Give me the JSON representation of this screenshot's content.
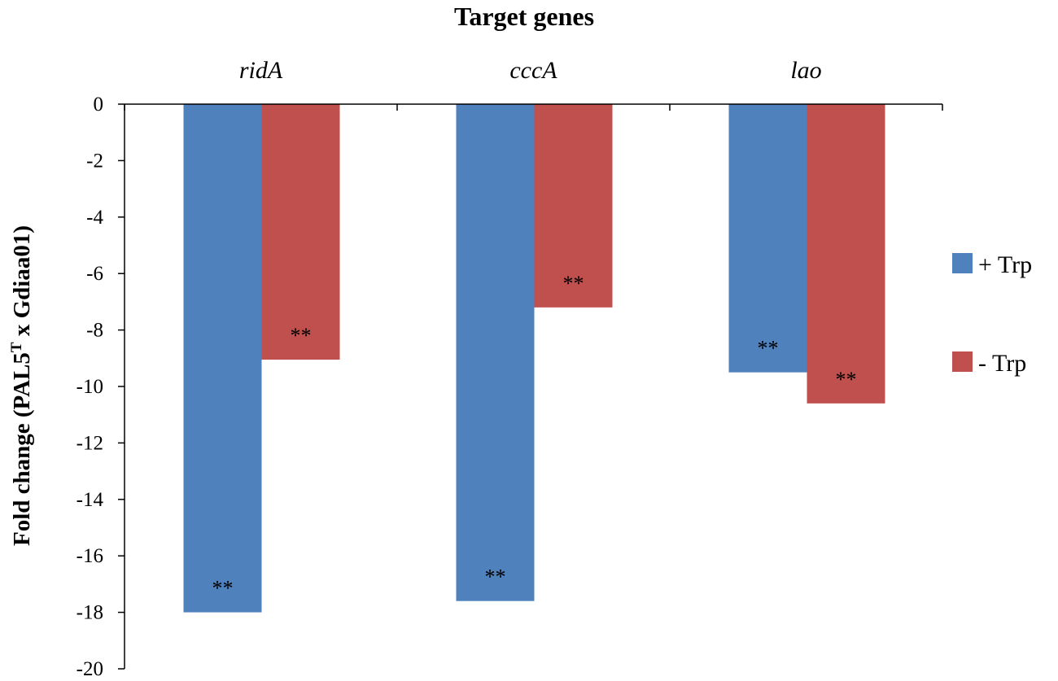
{
  "chart_data": {
    "type": "bar",
    "title": "Target genes",
    "ylabel_main": "Fold change (PAL5",
    "ylabel_superscript": "T",
    "ylabel_tail": " x Gdiaa01)",
    "categories": [
      "ridA",
      "cccA",
      "lao"
    ],
    "series": [
      {
        "name": "+ Trp",
        "color": "#4F81BD",
        "values": [
          -18.0,
          -17.6,
          -9.5
        ],
        "labels": [
          "**",
          "**",
          "**"
        ]
      },
      {
        "name": "- Trp",
        "color": "#C0504D",
        "values": [
          -9.05,
          -7.2,
          -10.6
        ],
        "labels": [
          "**",
          "**",
          "**"
        ]
      }
    ],
    "ylim": [
      -20,
      0
    ],
    "yticks": [
      "0",
      "-2",
      "-4",
      "-6",
      "-8",
      "-10",
      "-12",
      "-14",
      "-16",
      "-18",
      "-20"
    ],
    "grid": false,
    "legend_position": "right",
    "x_axis_position": "top"
  }
}
